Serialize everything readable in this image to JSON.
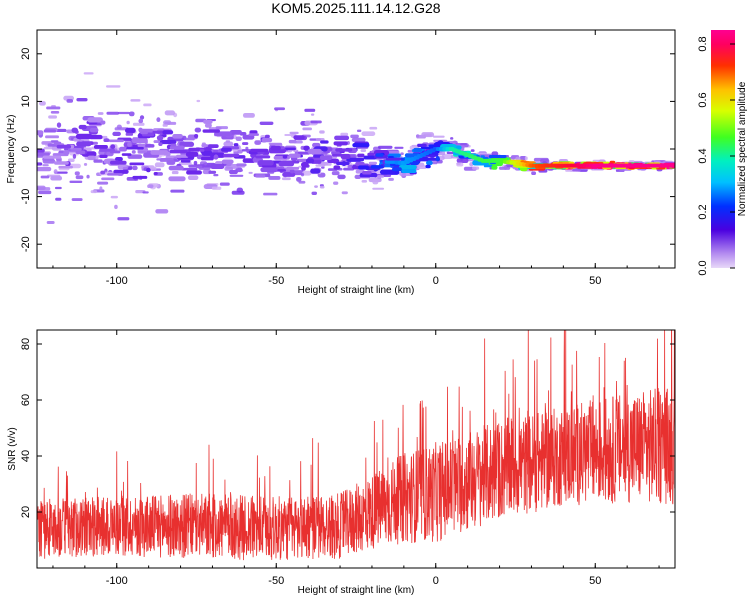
{
  "figure": {
    "title": "KOM5.2025.111.14.12.G28"
  },
  "chart_data": [
    {
      "type": "heatmap",
      "subtype": "spectrogram",
      "xlabel": "Height of straight line (km)",
      "ylabel": "Frequency (Hz)",
      "xlim": [
        -125,
        75
      ],
      "ylim": [
        -25,
        25
      ],
      "xticks": [
        "-100",
        "-50",
        "0",
        "50"
      ],
      "xtick_values": [
        -100,
        -50,
        0,
        50
      ],
      "yticks": [
        "20",
        "10",
        "0",
        "-10",
        "-20"
      ],
      "ytick_values": [
        20,
        10,
        0,
        -10,
        -20
      ],
      "colorbar": {
        "label": "Normalized spectral amplitude",
        "range": [
          0.0,
          0.85
        ],
        "ticks": [
          "0.0",
          "0.2",
          "0.4",
          "0.6",
          "0.8"
        ],
        "tick_values": [
          0.0,
          0.2,
          0.4,
          0.6,
          0.8
        ],
        "colormap": "rainbow (light purple to blue to cyan to green to yellow to red to magenta)"
      },
      "dominant_frequency_trend": {
        "x": [
          -125,
          -100,
          -75,
          -50,
          -25,
          -10,
          0,
          5,
          15,
          20,
          30,
          50,
          75
        ],
        "y": [
          0.5,
          0,
          -0.5,
          -1,
          -2,
          -3,
          0,
          0,
          -2.5,
          -2.5,
          -3.5,
          -3.5,
          -3.5
        ],
        "amplitude": [
          0.1,
          0.12,
          0.12,
          0.12,
          0.15,
          0.3,
          0.25,
          0.4,
          0.45,
          0.45,
          0.7,
          0.85,
          0.85
        ]
      },
      "scatter_spread_hz": {
        "x": [
          -125,
          -50,
          -10,
          0,
          30,
          75
        ],
        "spread": [
          12,
          8,
          4,
          3,
          1,
          0.7
        ]
      }
    },
    {
      "type": "line",
      "xlabel": "Height of straight line (km)",
      "ylabel": "SNR (v/v)",
      "xlim": [
        -125,
        75
      ],
      "ylim": [
        0,
        85
      ],
      "xticks": [
        "-100",
        "-50",
        "0",
        "50"
      ],
      "xtick_values": [
        -100,
        -50,
        0,
        50
      ],
      "yticks": [
        "80",
        "60",
        "40",
        "20"
      ],
      "ytick_values": [
        80,
        60,
        40,
        20
      ],
      "color": "#e8302f",
      "trend": {
        "x": [
          -125,
          -100,
          -75,
          -50,
          -30,
          -20,
          -10,
          0,
          20,
          40,
          60,
          75
        ],
        "mean": [
          14,
          15,
          15,
          14,
          15,
          20,
          25,
          27,
          35,
          40,
          43,
          44
        ],
        "amplitude": [
          12,
          12,
          13,
          13,
          13,
          15,
          18,
          20,
          20,
          20,
          22,
          24
        ]
      }
    }
  ]
}
